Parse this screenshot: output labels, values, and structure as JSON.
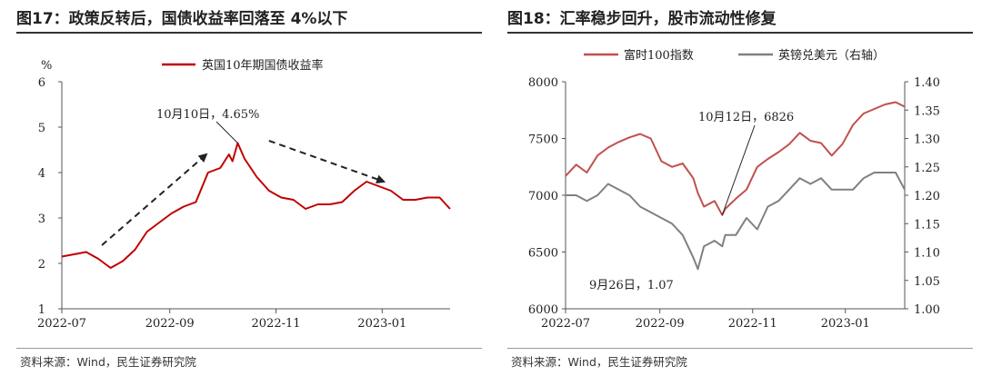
{
  "left": {
    "title": "图17：政策反转后，国债收益率回落至 4%以下",
    "source": "资料来源：Wind，民生证券研究院",
    "unit_label": "%",
    "annotation": "10月10日，4.65%",
    "colors": {
      "series": "#c00000",
      "arrow": "#222222",
      "axis": "#555555"
    }
  },
  "right": {
    "title": "图18：汇率稳步回升，股市流动性修复",
    "source": "资料来源：Wind，民生证券研究院",
    "annotations": [
      "10月12日，6826",
      "9月26日，1.07"
    ],
    "colors": {
      "left_series": "#c0504d",
      "right_series": "#808080",
      "axis": "#555555"
    }
  },
  "chart_data": [
    {
      "type": "line",
      "title": "图17：政策反转后，国债收益率回落至 4%以下",
      "ylabel": "%",
      "ylim": [
        1,
        6
      ],
      "yticks": [
        "1",
        "2",
        "3",
        "4",
        "5",
        "6"
      ],
      "xlabels": [
        "2022-07",
        "2022-09",
        "2022-11",
        "2023-01"
      ],
      "x_dates": [
        "2022-07-01",
        "2022-07-08",
        "2022-07-15",
        "2022-07-22",
        "2022-07-29",
        "2022-08-05",
        "2022-08-12",
        "2022-08-19",
        "2022-08-26",
        "2022-09-02",
        "2022-09-09",
        "2022-09-16",
        "2022-09-23",
        "2022-09-30",
        "2022-10-05",
        "2022-10-07",
        "2022-10-10",
        "2022-10-14",
        "2022-10-21",
        "2022-10-28",
        "2022-11-04",
        "2022-11-11",
        "2022-11-18",
        "2022-11-25",
        "2022-12-02",
        "2022-12-09",
        "2022-12-16",
        "2022-12-23",
        "2022-12-30",
        "2023-01-06",
        "2023-01-13",
        "2023-01-20",
        "2023-01-27",
        "2023-02-03",
        "2023-02-09"
      ],
      "series": [
        {
          "name": "英国10年期国债收益率",
          "values": [
            2.15,
            2.2,
            2.25,
            2.1,
            1.9,
            2.05,
            2.3,
            2.7,
            2.9,
            3.1,
            3.25,
            3.35,
            4.0,
            4.1,
            4.4,
            4.25,
            4.65,
            4.3,
            3.9,
            3.6,
            3.45,
            3.4,
            3.2,
            3.3,
            3.3,
            3.35,
            3.6,
            3.8,
            3.7,
            3.6,
            3.4,
            3.4,
            3.45,
            3.45,
            3.2
          ]
        }
      ],
      "annotations": [
        {
          "text": "10月10日，4.65%",
          "x": "2022-10-10",
          "y": 4.65
        }
      ],
      "arrows": [
        {
          "from": [
            "2022-07-24",
            2.4
          ],
          "to": [
            "2022-09-22",
            4.4
          ]
        },
        {
          "from": [
            "2022-10-28",
            4.7
          ],
          "to": [
            "2023-01-02",
            3.8
          ]
        }
      ]
    },
    {
      "type": "line",
      "title": "图18：汇率稳步回升，股市流动性修复",
      "ylim": [
        6000,
        8000
      ],
      "yticks": [
        "6000",
        "6500",
        "7000",
        "7500",
        "8000"
      ],
      "y2lim": [
        1.0,
        1.4
      ],
      "y2ticks": [
        "1.00",
        "1.05",
        "1.10",
        "1.15",
        "1.20",
        "1.25",
        "1.30",
        "1.35",
        "1.40"
      ],
      "xlabels": [
        "2022-07",
        "2022-09",
        "2022-11",
        "2023-01"
      ],
      "x_dates": [
        "2022-07-01",
        "2022-07-08",
        "2022-07-15",
        "2022-07-22",
        "2022-07-29",
        "2022-08-05",
        "2022-08-12",
        "2022-08-19",
        "2022-08-26",
        "2022-09-02",
        "2022-09-09",
        "2022-09-16",
        "2022-09-23",
        "2022-09-26",
        "2022-09-30",
        "2022-10-07",
        "2022-10-12",
        "2022-10-14",
        "2022-10-21",
        "2022-10-28",
        "2022-11-04",
        "2022-11-11",
        "2022-11-18",
        "2022-11-25",
        "2022-12-02",
        "2022-12-09",
        "2022-12-16",
        "2022-12-23",
        "2022-12-30",
        "2023-01-06",
        "2023-01-13",
        "2023-01-20",
        "2023-01-27",
        "2023-02-03",
        "2023-02-09"
      ],
      "series": [
        {
          "name": "富时100指数",
          "axis": "left",
          "values": [
            7170,
            7270,
            7200,
            7350,
            7420,
            7470,
            7510,
            7540,
            7500,
            7300,
            7250,
            7280,
            7150,
            7020,
            6900,
            6950,
            6826,
            6880,
            6970,
            7050,
            7250,
            7320,
            7380,
            7450,
            7550,
            7480,
            7460,
            7350,
            7450,
            7620,
            7720,
            7760,
            7800,
            7820,
            7780
          ]
        },
        {
          "name": "英镑兑美元（右轴）",
          "axis": "right",
          "values": [
            1.2,
            1.2,
            1.19,
            1.2,
            1.22,
            1.21,
            1.2,
            1.18,
            1.17,
            1.16,
            1.15,
            1.13,
            1.09,
            1.07,
            1.11,
            1.12,
            1.11,
            1.13,
            1.13,
            1.16,
            1.14,
            1.18,
            1.19,
            1.21,
            1.23,
            1.22,
            1.23,
            1.21,
            1.21,
            1.21,
            1.23,
            1.24,
            1.24,
            1.24,
            1.21
          ]
        }
      ],
      "annotations": [
        {
          "text": "10月12日，6826",
          "x": "2022-10-12",
          "y": 6826
        },
        {
          "text": "9月26日，1.07",
          "x": "2022-09-26",
          "y": 1.07
        }
      ]
    }
  ]
}
